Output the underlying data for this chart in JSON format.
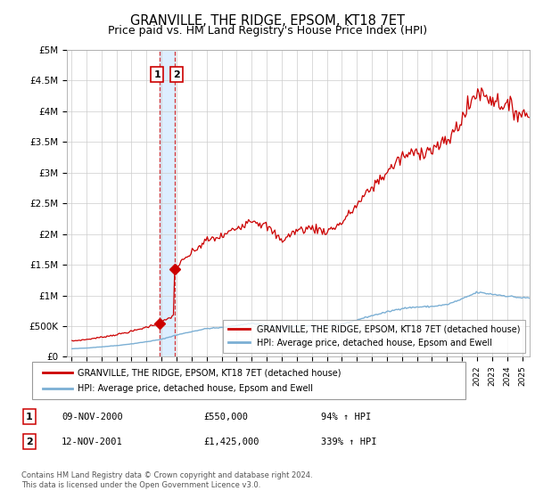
{
  "title": "GRANVILLE, THE RIDGE, EPSOM, KT18 7ET",
  "subtitle": "Price paid vs. HM Land Registry's House Price Index (HPI)",
  "title_fontsize": 10.5,
  "subtitle_fontsize": 9,
  "ylim": [
    0,
    5000000
  ],
  "xlim_start": 1994.7,
  "xlim_end": 2025.5,
  "yticks": [
    0,
    500000,
    1000000,
    1500000,
    2000000,
    2500000,
    3000000,
    3500000,
    4000000,
    4500000,
    5000000
  ],
  "ytick_labels": [
    "£0",
    "£500K",
    "£1M",
    "£1.5M",
    "£2M",
    "£2.5M",
    "£3M",
    "£3.5M",
    "£4M",
    "£4.5M",
    "£5M"
  ],
  "sale1_date": 2000.86,
  "sale1_price": 550000,
  "sale1_label": "1",
  "sale1_text": "09-NOV-2000",
  "sale1_price_text": "£550,000",
  "sale1_hpi_text": "94% ↑ HPI",
  "sale2_date": 2001.87,
  "sale2_price": 1425000,
  "sale2_label": "2",
  "sale2_text": "12-NOV-2001",
  "sale2_price_text": "£1,425,000",
  "sale2_hpi_text": "339% ↑ HPI",
  "red_line_color": "#cc0000",
  "blue_line_color": "#7bafd4",
  "vband_color": "#ddeeff",
  "legend_line1": "GRANVILLE, THE RIDGE, EPSOM, KT18 7ET (detached house)",
  "legend_line2": "HPI: Average price, detached house, Epsom and Ewell",
  "footer1": "Contains HM Land Registry data © Crown copyright and database right 2024.",
  "footer2": "This data is licensed under the Open Government Licence v3.0.",
  "background_color": "#ffffff",
  "plot_bg_color": "#ffffff",
  "grid_color": "#cccccc"
}
